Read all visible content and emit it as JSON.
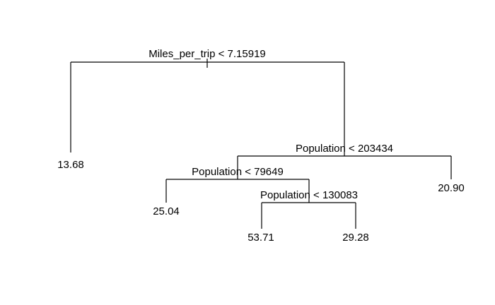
{
  "tree": {
    "splits": {
      "root": "Miles_per_trip < 7.15919",
      "right": "Population < 203434",
      "right_left": "Population < 79649",
      "right_left_right": "Population < 130083"
    },
    "leaves": {
      "left": "13.68",
      "right_right": "20.90",
      "right_left_left": "25.04",
      "right_left_right_left": "53.71",
      "right_left_right_right": "29.28"
    }
  },
  "colors": {
    "line": "#000000",
    "text": "#000000",
    "background": "#ffffff"
  }
}
